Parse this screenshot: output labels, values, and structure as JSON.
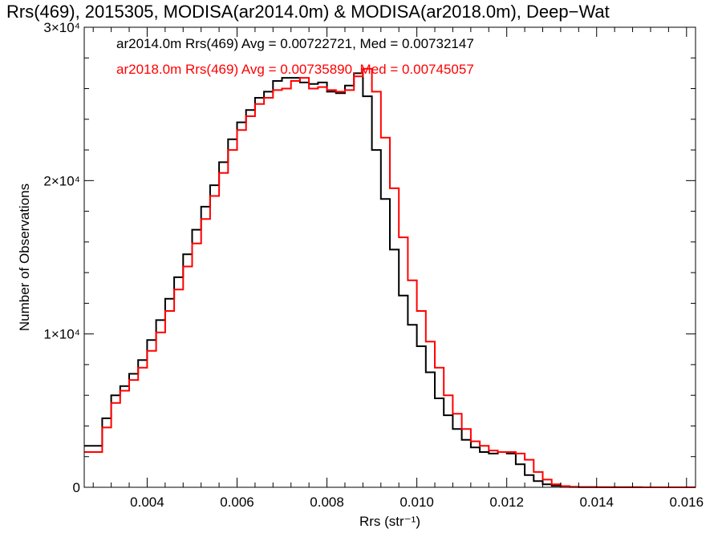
{
  "chart_data": {
    "type": "line",
    "title": "Rrs(469), 2015305, MODISA(ar2014.0m) & MODISA(ar2018.0m), Deep−Wat",
    "xlabel": "Rrs (str⁻¹)",
    "ylabel": "Number of Observations",
    "xlim": [
      0.0026,
      0.0162
    ],
    "ylim": [
      0,
      30000
    ],
    "x_ticks": [
      {
        "value": 0.004,
        "label": "0.004"
      },
      {
        "value": 0.006,
        "label": "0.006"
      },
      {
        "value": 0.008,
        "label": "0.008"
      },
      {
        "value": 0.01,
        "label": "0.010"
      },
      {
        "value": 0.012,
        "label": "0.012"
      },
      {
        "value": 0.014,
        "label": "0.014"
      },
      {
        "value": 0.016,
        "label": "0.016"
      }
    ],
    "y_ticks": [
      {
        "value": 0,
        "label": "0"
      },
      {
        "value": 10000,
        "label": "1×10⁴"
      },
      {
        "value": 20000,
        "label": "2×10⁴"
      },
      {
        "value": 30000,
        "label": "3×10⁴"
      }
    ],
    "legend": [
      {
        "text": "ar2014.0m Rrs(469) Avg = 0.00722721, Med = 0.00732147",
        "color": "#000000"
      },
      {
        "text": "ar2018.0m Rrs(469) Avg = 0.00735890, Med = 0.00745057",
        "color": "#ff0000"
      }
    ],
    "series": [
      {
        "color": "#000000",
        "x": [
          0.0026,
          0.003,
          0.0032,
          0.0034,
          0.0036,
          0.0038,
          0.004,
          0.0042,
          0.0044,
          0.0046,
          0.0048,
          0.005,
          0.0052,
          0.0054,
          0.0056,
          0.0058,
          0.006,
          0.0062,
          0.0064,
          0.0066,
          0.0068,
          0.007,
          0.0072,
          0.0074,
          0.0076,
          0.0078,
          0.008,
          0.0082,
          0.0084,
          0.0086,
          0.0088,
          0.009,
          0.0092,
          0.0094,
          0.0096,
          0.0098,
          0.01,
          0.0102,
          0.0104,
          0.0106,
          0.0108,
          0.011,
          0.0112,
          0.0114,
          0.0116,
          0.0118,
          0.012,
          0.0122,
          0.0124,
          0.0126,
          0.0128,
          0.013,
          0.0132,
          0.0134,
          0.0136,
          0.014,
          0.015,
          0.0162
        ],
        "y": [
          2700,
          4500,
          6000,
          6600,
          7400,
          8300,
          9600,
          10900,
          12300,
          13700,
          15200,
          16800,
          18300,
          19700,
          21200,
          22700,
          23800,
          24600,
          25400,
          25800,
          26500,
          26700,
          26700,
          26400,
          26300,
          26400,
          25800,
          25700,
          26200,
          27000,
          25500,
          22000,
          18800,
          15500,
          12500,
          10600,
          9200,
          7500,
          5800,
          4700,
          3800,
          3100,
          2600,
          2300,
          2200,
          2300,
          2200,
          1500,
          800,
          400,
          200,
          100,
          50,
          20,
          10,
          5,
          0,
          0
        ]
      },
      {
        "color": "#ff0000",
        "x": [
          0.0026,
          0.003,
          0.0032,
          0.0034,
          0.0036,
          0.0038,
          0.004,
          0.0042,
          0.0044,
          0.0046,
          0.0048,
          0.005,
          0.0052,
          0.0054,
          0.0056,
          0.0058,
          0.006,
          0.0062,
          0.0064,
          0.0066,
          0.0068,
          0.007,
          0.0072,
          0.0074,
          0.0076,
          0.0078,
          0.008,
          0.0082,
          0.0084,
          0.0086,
          0.0088,
          0.009,
          0.0092,
          0.0094,
          0.0096,
          0.0098,
          0.01,
          0.0102,
          0.0104,
          0.0106,
          0.0108,
          0.011,
          0.0112,
          0.0114,
          0.0116,
          0.0118,
          0.012,
          0.0122,
          0.0124,
          0.0126,
          0.0128,
          0.013,
          0.0132,
          0.0134,
          0.0136,
          0.014,
          0.015,
          0.0162
        ],
        "y": [
          2300,
          3900,
          5500,
          6300,
          7000,
          7800,
          8900,
          10100,
          11500,
          12900,
          14400,
          15900,
          17500,
          19000,
          20500,
          22000,
          23300,
          24200,
          25000,
          25400,
          25900,
          26000,
          26500,
          26700,
          26000,
          26100,
          25900,
          25800,
          25900,
          26800,
          27300,
          25800,
          22800,
          19500,
          16300,
          13500,
          11500,
          9500,
          7800,
          6000,
          4800,
          3800,
          3000,
          2700,
          2400,
          2300,
          2300,
          2200,
          1800,
          1000,
          500,
          200,
          80,
          30,
          10,
          5,
          0,
          0
        ]
      }
    ],
    "grid": false
  }
}
